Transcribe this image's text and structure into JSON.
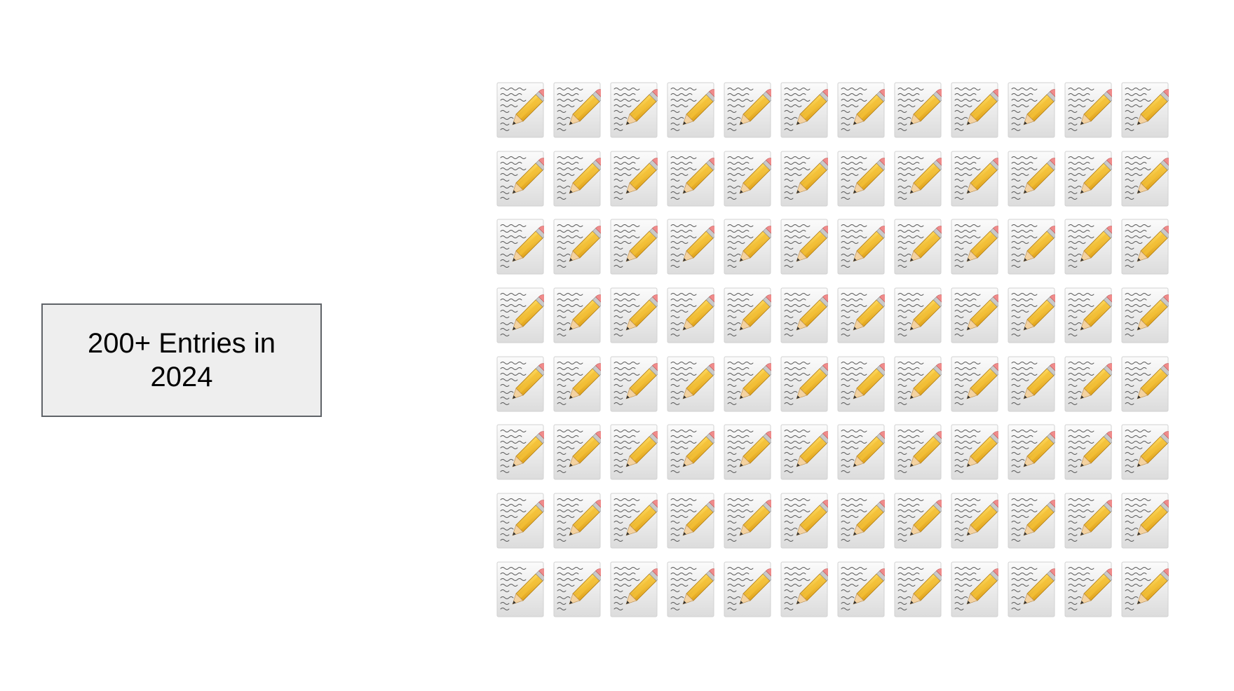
{
  "stat_box": {
    "text": "200+ Entries in 2024"
  },
  "icon_grid": {
    "icon": "memo-icon",
    "rows": 8,
    "columns": 12
  }
}
